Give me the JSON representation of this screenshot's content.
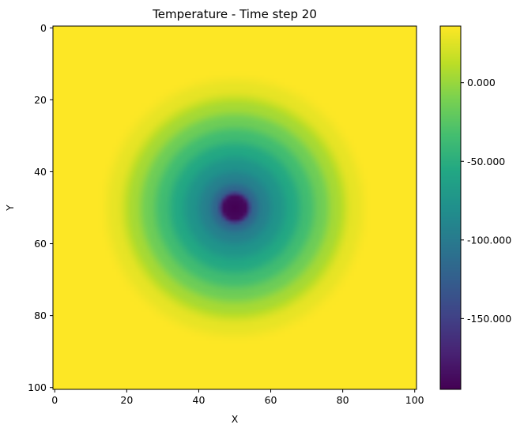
{
  "chart_data": {
    "type": "heatmap",
    "title": "Temperature - Time step 20",
    "xlabel": "X",
    "ylabel": "Y",
    "grid_size": [
      101,
      101
    ],
    "x_range": [
      0,
      100
    ],
    "y_range": [
      0,
      100
    ],
    "y_axis_inverted": true,
    "xticks": [
      0,
      20,
      40,
      60,
      80,
      100
    ],
    "xtick_labels": [
      "0",
      "20",
      "40",
      "60",
      "80",
      "100"
    ],
    "yticks": [
      0,
      20,
      40,
      60,
      80,
      100
    ],
    "ytick_labels": [
      "0",
      "20",
      "40",
      "60",
      "80",
      "100"
    ],
    "field": {
      "shape": "radial",
      "center": [
        50,
        50
      ],
      "center_value": -195,
      "background_value": 36,
      "profile": [
        {
          "r": 0,
          "value": -195
        },
        {
          "r": 3,
          "value": -190
        },
        {
          "r": 5,
          "value": -120
        },
        {
          "r": 8,
          "value": -95
        },
        {
          "r": 12,
          "value": -75
        },
        {
          "r": 16,
          "value": -55
        },
        {
          "r": 20,
          "value": -35
        },
        {
          "r": 24,
          "value": -15
        },
        {
          "r": 28,
          "value": 5
        },
        {
          "r": 33,
          "value": 28
        },
        {
          "r": 38,
          "value": 36
        }
      ]
    },
    "colormap": "viridis",
    "colorbar": {
      "vmin": -195,
      "vmax": 36,
      "ticks": [
        0,
        -50,
        -100,
        -150
      ],
      "tick_labels": [
        "0.000",
        "-50.000",
        "-100.000",
        "-150.000"
      ]
    }
  }
}
